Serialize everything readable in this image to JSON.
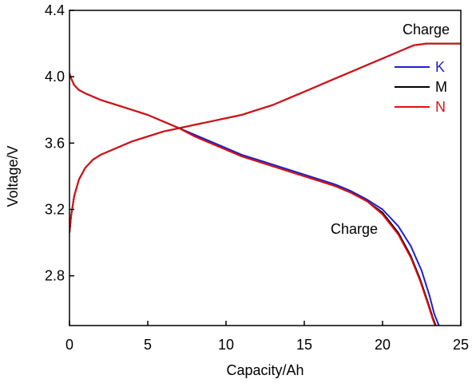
{
  "chart_data": {
    "type": "line",
    "xlabel": "Capacity/Ah",
    "ylabel": "Voltage/V",
    "xlim": [
      0,
      25
    ],
    "ylim": [
      2.5,
      4.4
    ],
    "xticks": [
      0,
      5,
      10,
      15,
      20,
      25
    ],
    "yticks": [
      2.8,
      3.2,
      3.6,
      4.0,
      4.4
    ],
    "xtick_labels": [
      "0",
      "5",
      "10",
      "15",
      "20",
      "25"
    ],
    "ytick_labels": [
      "2.8",
      "3.2",
      "3.6",
      "4.0",
      "4.4"
    ],
    "grid": false,
    "legend_position": "right",
    "annotations": [
      {
        "text": "Charge",
        "x": 22.4,
        "y": 4.26
      },
      {
        "text": "Charge",
        "x": 16.8,
        "y": 3.06
      }
    ],
    "series": [
      {
        "name": "K",
        "color": "#1f1fd0",
        "group": "charge",
        "x": [
          0,
          0.1,
          0.3,
          0.6,
          1.0,
          1.5,
          2.0,
          3.0,
          4.0,
          5.0,
          6.0,
          7.0,
          8.0,
          9.0,
          10.0,
          11.0,
          12.0,
          13.0,
          14.0,
          15.0,
          16.0,
          17.0,
          18.0,
          19.0,
          20.0,
          21.0,
          22.0,
          22.8,
          25.0
        ],
        "y": [
          3.06,
          3.16,
          3.28,
          3.38,
          3.45,
          3.5,
          3.53,
          3.57,
          3.61,
          3.64,
          3.67,
          3.69,
          3.71,
          3.73,
          3.75,
          3.77,
          3.8,
          3.83,
          3.87,
          3.91,
          3.95,
          3.99,
          4.03,
          4.07,
          4.11,
          4.15,
          4.19,
          4.2,
          4.2
        ]
      },
      {
        "name": "M",
        "color": "#000000",
        "group": "charge",
        "x": [
          0,
          0.1,
          0.3,
          0.6,
          1.0,
          1.5,
          2.0,
          3.0,
          4.0,
          5.0,
          6.0,
          7.0,
          8.0,
          9.0,
          10.0,
          11.0,
          12.0,
          13.0,
          14.0,
          15.0,
          16.0,
          17.0,
          18.0,
          19.0,
          20.0,
          21.0,
          22.0,
          22.8,
          25.0
        ],
        "y": [
          3.06,
          3.16,
          3.28,
          3.38,
          3.45,
          3.5,
          3.53,
          3.57,
          3.61,
          3.64,
          3.67,
          3.69,
          3.71,
          3.73,
          3.75,
          3.77,
          3.8,
          3.83,
          3.87,
          3.91,
          3.95,
          3.99,
          4.03,
          4.07,
          4.11,
          4.15,
          4.19,
          4.2,
          4.2
        ]
      },
      {
        "name": "N",
        "color": "#e01010",
        "group": "charge",
        "x": [
          0,
          0.1,
          0.3,
          0.6,
          1.0,
          1.5,
          2.0,
          3.0,
          4.0,
          5.0,
          6.0,
          7.0,
          8.0,
          9.0,
          10.0,
          11.0,
          12.0,
          13.0,
          14.0,
          15.0,
          16.0,
          17.0,
          18.0,
          19.0,
          20.0,
          21.0,
          22.0,
          22.8,
          25.0
        ],
        "y": [
          3.06,
          3.16,
          3.28,
          3.38,
          3.45,
          3.5,
          3.53,
          3.57,
          3.61,
          3.64,
          3.67,
          3.69,
          3.71,
          3.73,
          3.75,
          3.77,
          3.8,
          3.83,
          3.87,
          3.91,
          3.95,
          3.99,
          4.03,
          4.07,
          4.11,
          4.15,
          4.19,
          4.2,
          4.2
        ]
      },
      {
        "name": "K",
        "color": "#1f1fd0",
        "group": "curve2",
        "x": [
          0,
          0.1,
          0.3,
          0.6,
          1.0,
          2.0,
          3.0,
          4.0,
          5.0,
          6.0,
          7.0,
          8.0,
          9.0,
          10.0,
          11.0,
          12.0,
          13.0,
          14.0,
          15.0,
          16.0,
          17.0,
          18.0,
          19.0,
          20.0,
          21.0,
          21.8,
          22.5,
          23.0,
          23.3,
          23.6
        ],
        "y": [
          4.02,
          3.99,
          3.95,
          3.92,
          3.9,
          3.86,
          3.83,
          3.8,
          3.77,
          3.73,
          3.69,
          3.65,
          3.61,
          3.57,
          3.53,
          3.5,
          3.47,
          3.44,
          3.41,
          3.38,
          3.35,
          3.31,
          3.26,
          3.2,
          3.1,
          2.98,
          2.83,
          2.68,
          2.57,
          2.5
        ]
      },
      {
        "name": "M",
        "color": "#000000",
        "group": "curve2",
        "x": [
          0,
          0.1,
          0.3,
          0.6,
          1.0,
          2.0,
          3.0,
          4.0,
          5.0,
          6.0,
          7.0,
          8.0,
          9.0,
          10.0,
          11.0,
          12.0,
          13.0,
          14.0,
          15.0,
          16.0,
          17.0,
          18.0,
          19.0,
          20.0,
          21.0,
          21.8,
          22.4,
          22.9,
          23.2,
          23.4
        ],
        "y": [
          4.02,
          3.99,
          3.95,
          3.92,
          3.9,
          3.86,
          3.83,
          3.8,
          3.77,
          3.73,
          3.69,
          3.64,
          3.6,
          3.56,
          3.52,
          3.49,
          3.46,
          3.43,
          3.4,
          3.37,
          3.34,
          3.3,
          3.25,
          3.18,
          3.06,
          2.92,
          2.78,
          2.64,
          2.55,
          2.5
        ]
      },
      {
        "name": "N",
        "color": "#e01010",
        "group": "curve2",
        "x": [
          0,
          0.1,
          0.3,
          0.6,
          1.0,
          2.0,
          3.0,
          4.0,
          5.0,
          6.0,
          7.0,
          8.0,
          9.0,
          10.0,
          11.0,
          12.0,
          13.0,
          14.0,
          15.0,
          16.0,
          17.0,
          18.0,
          19.0,
          20.0,
          21.0,
          21.8,
          22.4,
          22.9,
          23.2,
          23.35
        ],
        "y": [
          4.02,
          3.99,
          3.95,
          3.92,
          3.9,
          3.86,
          3.83,
          3.8,
          3.77,
          3.73,
          3.69,
          3.64,
          3.6,
          3.56,
          3.52,
          3.49,
          3.46,
          3.43,
          3.4,
          3.37,
          3.34,
          3.3,
          3.25,
          3.17,
          3.05,
          2.91,
          2.77,
          2.63,
          2.54,
          2.5
        ]
      }
    ],
    "legend": [
      {
        "label": "K",
        "color": "#1f1fd0"
      },
      {
        "label": "M",
        "color": "#000000"
      },
      {
        "label": "N",
        "color": "#e01010"
      }
    ]
  }
}
